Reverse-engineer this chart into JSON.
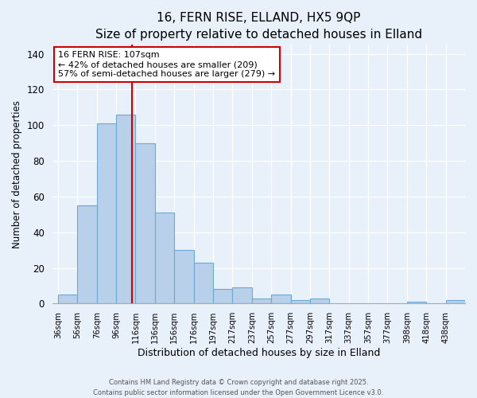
{
  "title": "16, FERN RISE, ELLAND, HX5 9QP",
  "subtitle": "Size of property relative to detached houses in Elland",
  "xlabel": "Distribution of detached houses by size in Elland",
  "ylabel": "Number of detached properties",
  "bar_labels": [
    "36sqm",
    "56sqm",
    "76sqm",
    "96sqm",
    "116sqm",
    "136sqm",
    "156sqm",
    "176sqm",
    "197sqm",
    "217sqm",
    "237sqm",
    "257sqm",
    "277sqm",
    "297sqm",
    "317sqm",
    "337sqm",
    "357sqm",
    "377sqm",
    "398sqm",
    "418sqm",
    "438sqm"
  ],
  "bar_values": [
    5,
    55,
    101,
    106,
    90,
    51,
    30,
    23,
    8,
    9,
    3,
    5,
    2,
    3,
    0,
    0,
    0,
    0,
    1,
    0,
    2
  ],
  "bar_color": "#b8d0ea",
  "bar_edge_color": "#6aaad4",
  "vline_position": 3.8,
  "vline_color": "#cc0000",
  "ylim": [
    0,
    145
  ],
  "yticks": [
    0,
    20,
    40,
    60,
    80,
    100,
    120,
    140
  ],
  "annotation_title": "16 FERN RISE: 107sqm",
  "annotation_line1": "← 42% of detached houses are smaller (209)",
  "annotation_line2": "57% of semi-detached houses are larger (279) →",
  "annotation_box_color": "#ffffff",
  "annotation_box_edge": "#cc0000",
  "footer_line1": "Contains HM Land Registry data © Crown copyright and database right 2025.",
  "footer_line2": "Contains public sector information licensed under the Open Government Licence v3.0.",
  "background_color": "#e8f0fa",
  "plot_background_color": "#e8f0fa",
  "title_fontsize": 11,
  "subtitle_fontsize": 9.5,
  "grid_color": "#ffffff"
}
